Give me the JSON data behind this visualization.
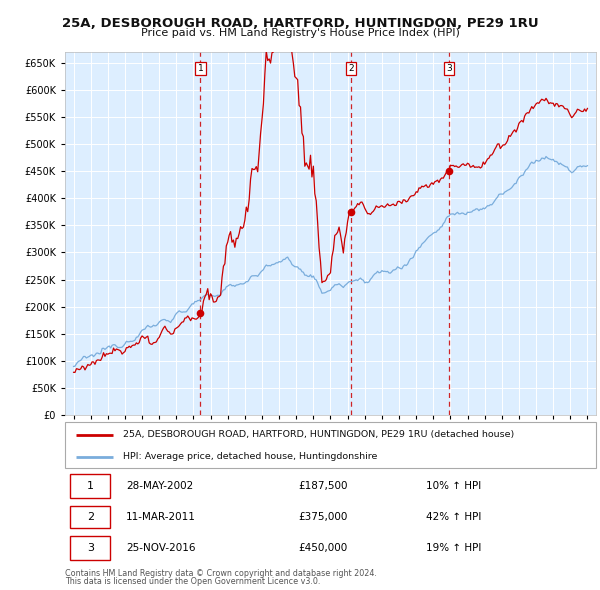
{
  "title1": "25A, DESBOROUGH ROAD, HARTFORD, HUNTINGDON, PE29 1RU",
  "title2": "Price paid vs. HM Land Registry's House Price Index (HPI)",
  "legend_line1": "25A, DESBOROUGH ROAD, HARTFORD, HUNTINGDON, PE29 1RU (detached house)",
  "legend_line2": "HPI: Average price, detached house, Huntingdonshire",
  "transactions": [
    {
      "num": 1,
      "date": "28-MAY-2002",
      "price": 187500,
      "pct": "10%",
      "dir": "↑"
    },
    {
      "num": 2,
      "date": "11-MAR-2011",
      "price": 375000,
      "pct": "42%",
      "dir": "↑"
    },
    {
      "num": 3,
      "date": "25-NOV-2016",
      "price": 450000,
      "pct": "19%",
      "dir": "↑"
    }
  ],
  "footer1": "Contains HM Land Registry data © Crown copyright and database right 2024.",
  "footer2": "This data is licensed under the Open Government Licence v3.0.",
  "transaction_dates": [
    2002.41,
    2011.19,
    2016.9
  ],
  "transaction_prices": [
    187500,
    375000,
    450000
  ],
  "red_color": "#cc0000",
  "blue_color": "#7aaddc",
  "bg_color": "#ddeeff",
  "grid_color": "#ffffff",
  "dashed_color": "#cc0000",
  "ylim": [
    0,
    670000
  ],
  "yticks": [
    0,
    50000,
    100000,
    150000,
    200000,
    250000,
    300000,
    350000,
    400000,
    450000,
    500000,
    550000,
    600000,
    650000
  ],
  "xlim_start": 1994.5,
  "xlim_end": 2025.5
}
